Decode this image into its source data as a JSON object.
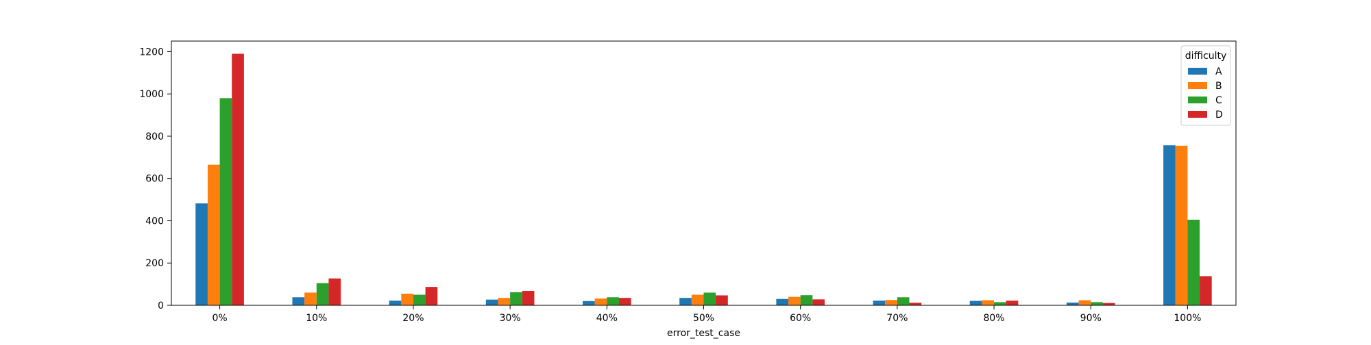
{
  "chart_data": {
    "type": "bar",
    "title": "",
    "xlabel": "error_test_case",
    "ylabel": "",
    "categories": [
      "0%",
      "10%",
      "20%",
      "30%",
      "40%",
      "50%",
      "60%",
      "70%",
      "80%",
      "90%",
      "100%"
    ],
    "ylim": [
      0,
      1250
    ],
    "yticks": [
      0,
      200,
      400,
      600,
      800,
      1000,
      1200
    ],
    "grid": false,
    "legend": {
      "title": "difficulty",
      "placement": "top-right"
    },
    "series": [
      {
        "name": "A",
        "color": "#1f77b4",
        "values": [
          482,
          38,
          22,
          27,
          20,
          35,
          30,
          22,
          21,
          13,
          757
        ]
      },
      {
        "name": "B",
        "color": "#ff7f0e",
        "values": [
          665,
          60,
          55,
          35,
          32,
          50,
          40,
          25,
          24,
          24,
          755
        ]
      },
      {
        "name": "C",
        "color": "#2ca02c",
        "values": [
          980,
          105,
          50,
          62,
          38,
          60,
          48,
          38,
          15,
          15,
          405
        ]
      },
      {
        "name": "D",
        "color": "#d62728",
        "values": [
          1190,
          127,
          87,
          68,
          35,
          47,
          28,
          12,
          22,
          11,
          138
        ]
      }
    ]
  }
}
